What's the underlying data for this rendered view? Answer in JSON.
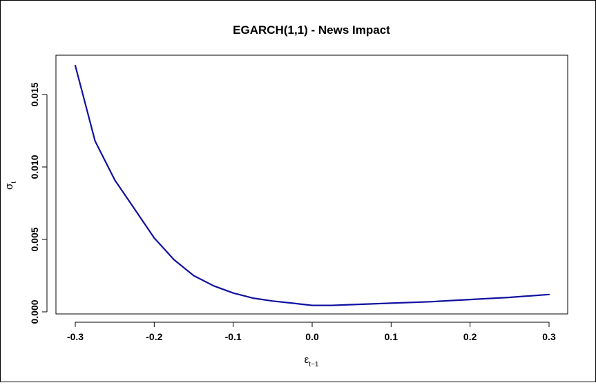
{
  "chart_data": {
    "type": "line",
    "title": "EGARCH(1,1) - News Impact",
    "xlabel": {
      "base": "ε",
      "sub": "t−1"
    },
    "ylabel": {
      "base": "σ",
      "sub": "t"
    },
    "xlim": [
      -0.3,
      0.3
    ],
    "ylim": [
      0.0,
      0.017
    ],
    "x_ticks": [
      -0.3,
      -0.2,
      -0.1,
      0.0,
      0.1,
      0.2,
      0.3
    ],
    "x_tick_labels": [
      "-0.3",
      "-0.2",
      "-0.1",
      "0.0",
      "0.1",
      "0.2",
      "0.3"
    ],
    "y_ticks": [
      0.0,
      0.005,
      0.01,
      0.015
    ],
    "y_tick_labels": [
      "0.000",
      "0.005",
      "0.010",
      "0.015"
    ],
    "grid": false,
    "legend": "none",
    "series": [
      {
        "color": "#1010a0",
        "x": [
          -0.3,
          -0.275,
          -0.25,
          -0.225,
          -0.2,
          -0.175,
          -0.15,
          -0.125,
          -0.1,
          -0.075,
          -0.05,
          -0.025,
          0.0,
          0.025,
          0.05,
          0.1,
          0.15,
          0.2,
          0.25,
          0.3
        ],
        "y": [
          0.017,
          0.0118,
          0.0091,
          0.0071,
          0.0051,
          0.0036,
          0.0025,
          0.0018,
          0.0013,
          0.00095,
          0.00075,
          0.0006,
          0.00045,
          0.00045,
          0.0005,
          0.0006,
          0.0007,
          0.00085,
          0.001,
          0.0012
        ]
      }
    ]
  }
}
